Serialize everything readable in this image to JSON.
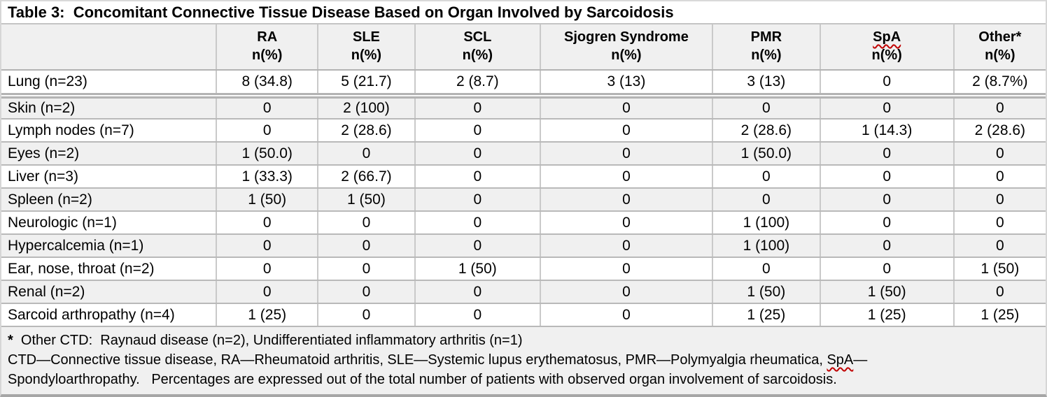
{
  "table": {
    "title": "Table 3:  Concomitant Connective Tissue Disease Based on Organ Involved by Sarcoidosis",
    "columns": [
      {
        "label": "",
        "sub": ""
      },
      {
        "label": "RA",
        "sub": "n(%)"
      },
      {
        "label": "SLE",
        "sub": "n(%)"
      },
      {
        "label": "SCL",
        "sub": "n(%)"
      },
      {
        "label": "Sjogren Syndrome",
        "sub": "n(%)"
      },
      {
        "label": "PMR",
        "sub": "n(%)"
      },
      {
        "label": "SpA",
        "sub": "n(%)",
        "spellcheck_squiggle": true
      },
      {
        "label": "Other*",
        "sub": "n(%)"
      }
    ],
    "rows": [
      {
        "organ": "Lung (n=23)",
        "values": [
          "8 (34.8)",
          "5 (21.7)",
          "2 (8.7)",
          "3 (13)",
          "3 (13)",
          "0",
          "2 (8.7%)"
        ]
      },
      {
        "organ": "Skin (n=2)",
        "values": [
          "0",
          "2 (100)",
          "0",
          "0",
          "0",
          "0",
          "0"
        ]
      },
      {
        "organ": "Lymph nodes (n=7)",
        "values": [
          "0",
          "2 (28.6)",
          "0",
          "0",
          "2 (28.6)",
          "1 (14.3)",
          "2 (28.6)"
        ]
      },
      {
        "organ": "Eyes (n=2)",
        "values": [
          "1 (50.0)",
          "0",
          "0",
          "0",
          "1 (50.0)",
          "0",
          "0"
        ]
      },
      {
        "organ": "Liver (n=3)",
        "values": [
          "1 (33.3)",
          "2 (66.7)",
          "0",
          "0",
          "0",
          "0",
          "0"
        ]
      },
      {
        "organ": "Spleen (n=2)",
        "values": [
          "1 (50)",
          "1 (50)",
          "0",
          "0",
          "0",
          "0",
          "0"
        ]
      },
      {
        "organ": "Neurologic (n=1)",
        "values": [
          "0",
          "0",
          "0",
          "0",
          "1 (100)",
          "0",
          "0"
        ]
      },
      {
        "organ": "Hypercalcemia (n=1)",
        "values": [
          "0",
          "0",
          "0",
          "0",
          "1 (100)",
          "0",
          "0"
        ]
      },
      {
        "organ": "Ear, nose, throat (n=2)",
        "values": [
          "0",
          "0",
          "1 (50)",
          "0",
          "0",
          "0",
          "1 (50)"
        ]
      },
      {
        "organ": "Renal (n=2)",
        "values": [
          "0",
          "0",
          "0",
          "0",
          "1 (50)",
          "1 (50)",
          "0"
        ]
      },
      {
        "organ": "Sarcoid arthropathy (n=4)",
        "values": [
          "1 (25)",
          "0",
          "0",
          "0",
          "1 (25)",
          "1 (25)",
          "1 (25)"
        ]
      }
    ],
    "footnotes": {
      "line1": {
        "star": "*",
        "text": "  Other CTD:  Raynaud disease (n=2), Undifferentiated inflammatory arthritis (n=1)"
      },
      "line2": {
        "pre": "CTD—Connective tissue disease, RA—Rheumatoid arthritis, SLE—Systemic lupus erythematosus, PMR—Polymyalgia rheumatica, ",
        "squiggle": "SpA",
        "post": "—"
      },
      "line3": "Spondyloarthropathy.   Percentages are expressed out of the total number of patients with observed organ involvement of sarcoidosis."
    },
    "colors": {
      "row_shade": "#f0f0f0",
      "grid_line": "#b9b9b9",
      "column_line": "#c9c9c9",
      "spellcheck_red": "#c00000"
    }
  }
}
